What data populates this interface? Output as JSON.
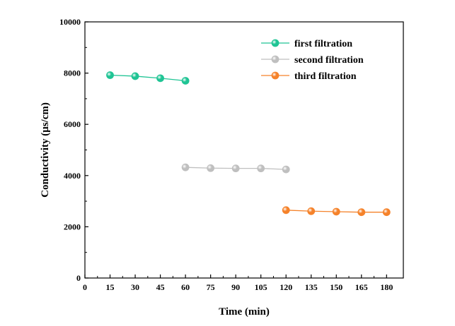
{
  "chart_data": {
    "type": "line",
    "title": "",
    "xlabel": "Time (min)",
    "ylabel": "Conductivity (μs/cm)",
    "xlim": [
      0,
      190
    ],
    "ylim": [
      0,
      10000
    ],
    "x_ticks": [
      "0",
      "15",
      "30",
      "45",
      "60",
      "75",
      "90",
      "105",
      "120",
      "135",
      "150",
      "165",
      "180"
    ],
    "y_ticks": [
      "0",
      "2000",
      "4000",
      "6000",
      "8000",
      "10000"
    ],
    "grid": false,
    "legend_position": "top-right",
    "series": [
      {
        "name": "first filtration",
        "color": "#1fc494",
        "x": [
          15,
          30,
          45,
          60
        ],
        "y": [
          7920,
          7880,
          7800,
          7700
        ]
      },
      {
        "name": "second filtration",
        "color": "#bfbfbf",
        "x": [
          60,
          75,
          90,
          105,
          120
        ],
        "y": [
          4320,
          4290,
          4280,
          4280,
          4240
        ]
      },
      {
        "name": "third filtration",
        "color": "#f5822a",
        "x": [
          120,
          135,
          150,
          165,
          180
        ],
        "y": [
          2650,
          2610,
          2590,
          2570,
          2570
        ]
      }
    ]
  }
}
